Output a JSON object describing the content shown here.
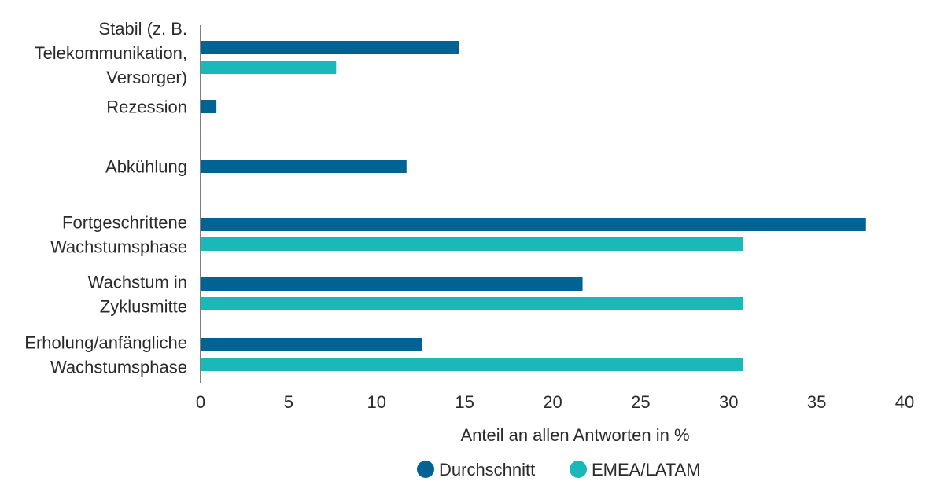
{
  "chart_data": {
    "type": "bar",
    "orientation": "horizontal",
    "categories": [
      [
        "Stabil (z. B.",
        "Telekommunikation,",
        "Versorger)"
      ],
      [
        "Rezession"
      ],
      [
        "Abkühlung"
      ],
      [
        "Fortgeschrittene",
        "Wachstumsphase"
      ],
      [
        "Wachstum in",
        "Zyklusmitte"
      ],
      [
        "Erholung/anfängliche",
        "Wachstumsphase"
      ]
    ],
    "series": [
      {
        "name": "Durchschnitt",
        "color": "#006394",
        "values": [
          14.7,
          0.9,
          11.7,
          37.8,
          21.7,
          12.6
        ]
      },
      {
        "name": "EMEA/LATAM",
        "color": "#1ab8b8",
        "values": [
          7.7,
          null,
          null,
          30.8,
          30.8,
          30.8
        ]
      }
    ],
    "xlabel": "Anteil an allen Antworten in %",
    "xlim": [
      0,
      40
    ],
    "xticks": [
      "0",
      "5",
      "10",
      "15",
      "20",
      "25",
      "30",
      "35",
      "40"
    ],
    "grid": false,
    "legend_position": "bottom"
  }
}
